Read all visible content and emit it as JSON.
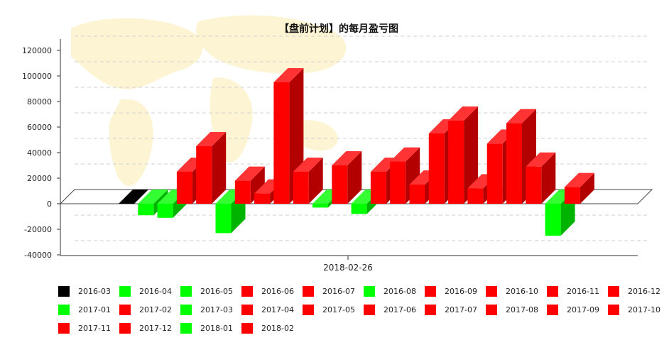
{
  "colors": {
    "positive": "#ff0000",
    "negative": "#00ff00",
    "neutral": "#000000"
  },
  "chart_data": {
    "type": "bar",
    "title": "【盘前计划】的每月盈亏图",
    "x_tick_label": "2018-02-26",
    "yticks": [
      120000,
      100000,
      80000,
      60000,
      40000,
      20000,
      0,
      -20000,
      -40000
    ],
    "ylim": [
      -40000,
      120000
    ],
    "grid": true,
    "legend_position": "bottom",
    "categories": [
      "2016-03",
      "2016-04",
      "2016-05",
      "2016-06",
      "2016-07",
      "2016-08",
      "2016-09",
      "2016-10",
      "2016-11",
      "2016-12",
      "2017-01",
      "2017-02",
      "2017-03",
      "2017-04",
      "2017-05",
      "2017-06",
      "2017-07",
      "2017-08",
      "2017-09",
      "2017-10",
      "2017-11",
      "2017-12",
      "2018-01",
      "2018-02"
    ],
    "values": [
      0,
      -9000,
      -11000,
      25000,
      45000,
      -23000,
      18000,
      8000,
      95000,
      25000,
      -3000,
      30000,
      -8000,
      25000,
      33000,
      15000,
      55000,
      65000,
      12000,
      47000,
      63000,
      29000,
      -25000,
      13000
    ],
    "colors": [
      "#000000",
      "#00ff00",
      "#00ff00",
      "#ff0000",
      "#ff0000",
      "#00ff00",
      "#ff0000",
      "#ff0000",
      "#ff0000",
      "#ff0000",
      "#00ff00",
      "#ff0000",
      "#00ff00",
      "#ff0000",
      "#ff0000",
      "#ff0000",
      "#ff0000",
      "#ff0000",
      "#ff0000",
      "#ff0000",
      "#ff0000",
      "#ff0000",
      "#00ff00",
      "#ff0000"
    ]
  }
}
